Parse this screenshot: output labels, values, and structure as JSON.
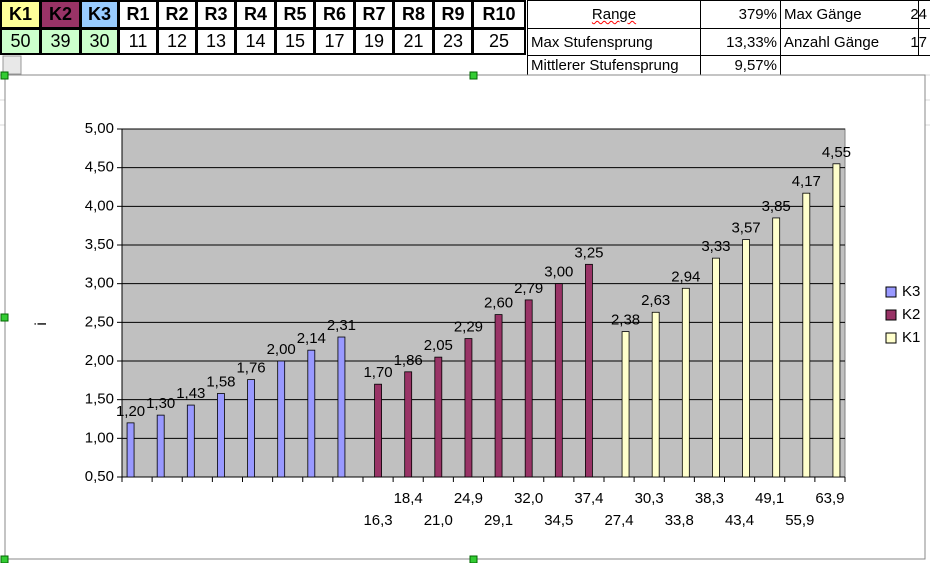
{
  "table_top": {
    "header": [
      "K1",
      "K2",
      "K3",
      "R1",
      "R2",
      "R3",
      "R4",
      "R5",
      "R6",
      "R7",
      "R8",
      "R9",
      "R10"
    ],
    "row": [
      50,
      39,
      30,
      11,
      12,
      13,
      14,
      15,
      17,
      19,
      21,
      23,
      25
    ]
  },
  "table_stats": {
    "rows": [
      [
        "Range",
        "379%",
        "Max Gänge",
        "24"
      ],
      [
        "Max Stufensprung",
        "13,33%",
        "Anzahl Gänge",
        "17"
      ],
      [
        "Mittlerer Stufensprung",
        "9,57%"
      ]
    ]
  },
  "chart_data": {
    "type": "bar",
    "y_label": "i",
    "categories": [
      null,
      null,
      null,
      null,
      null,
      null,
      null,
      null,
      "16,3",
      "18,4",
      "21,0",
      "24,9",
      "29,1",
      "32,0",
      "34,5",
      "37,4",
      "27,4",
      "30,3",
      "33,8",
      "38,3",
      "43,4",
      "49,1",
      "55,9",
      "63,9"
    ],
    "series": [
      {
        "name": "K3",
        "color": "#9999ff",
        "values": [
          1.2,
          1.3,
          1.43,
          1.58,
          1.76,
          2.0,
          2.14,
          2.31,
          null,
          null,
          null,
          null,
          null,
          null,
          null,
          null,
          null,
          null,
          null,
          null,
          null,
          null,
          null,
          null
        ],
        "value_labels": [
          "1,20",
          "1,30",
          "1,43",
          "1,58",
          "1,76",
          "2,00",
          "2,14",
          "2,31",
          null,
          null,
          null,
          null,
          null,
          null,
          null,
          null,
          null,
          null,
          null,
          null,
          null,
          null,
          null,
          null
        ]
      },
      {
        "name": "K2",
        "color": "#993366",
        "values": [
          null,
          null,
          null,
          null,
          null,
          null,
          null,
          null,
          1.7,
          1.86,
          2.05,
          2.29,
          2.6,
          2.79,
          3.0,
          3.25,
          null,
          null,
          null,
          null,
          null,
          null,
          null,
          null
        ],
        "value_labels": [
          null,
          null,
          null,
          null,
          null,
          null,
          null,
          null,
          "1,70",
          "1,86",
          "2,05",
          "2,29",
          "2,60",
          "2,79",
          "3,00",
          "3,25",
          null,
          null,
          null,
          null,
          null,
          null,
          null,
          null
        ]
      },
      {
        "name": "K1",
        "color": "#ffffcc",
        "values": [
          null,
          null,
          null,
          null,
          null,
          null,
          null,
          null,
          null,
          null,
          null,
          null,
          null,
          null,
          null,
          null,
          2.38,
          2.63,
          2.94,
          3.33,
          3.57,
          3.85,
          4.17,
          4.55
        ],
        "value_labels": [
          null,
          null,
          null,
          null,
          null,
          null,
          null,
          null,
          null,
          null,
          null,
          null,
          null,
          null,
          null,
          null,
          "2,38",
          "2,63",
          "2,94",
          "3,33",
          "3,57",
          "3,85",
          "4,17",
          "4,55"
        ]
      }
    ],
    "ylim": [
      0.5,
      5.0
    ],
    "yticks": [
      {
        "value": 0.5,
        "label": "0,50"
      },
      {
        "value": 1.0,
        "label": "1,00"
      },
      {
        "value": 1.5,
        "label": "1,50"
      },
      {
        "value": 2.0,
        "label": "2,00"
      },
      {
        "value": 2.5,
        "label": "2,50"
      },
      {
        "value": 3.0,
        "label": "3,00"
      },
      {
        "value": 3.5,
        "label": "3,50"
      },
      {
        "value": 4.0,
        "label": "4,00"
      },
      {
        "value": 4.5,
        "label": "4,50"
      },
      {
        "value": 5.0,
        "label": "5,00"
      }
    ],
    "grid": true,
    "legend": "right"
  }
}
